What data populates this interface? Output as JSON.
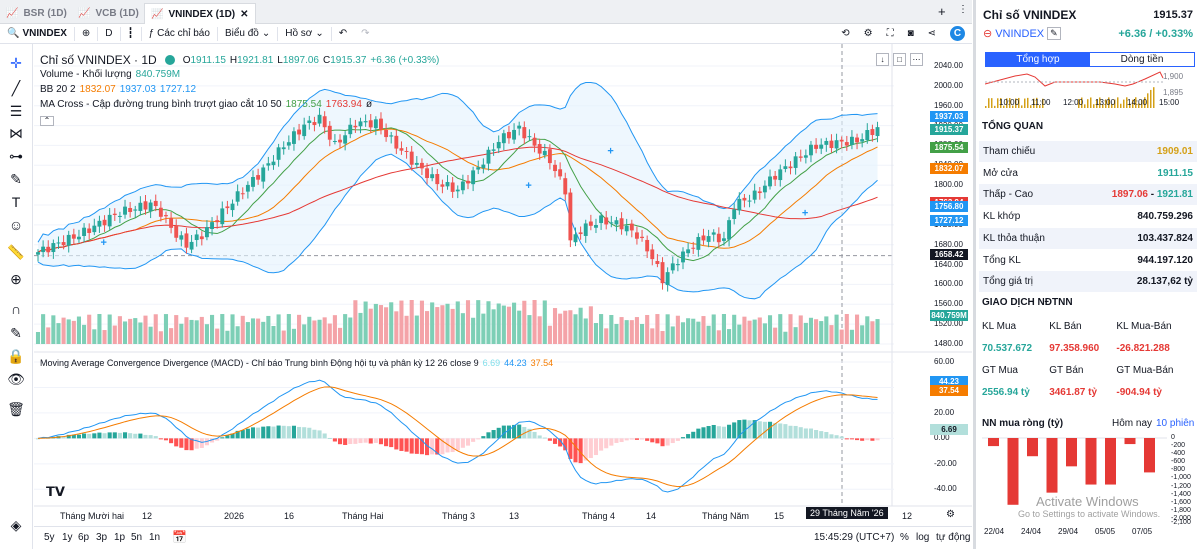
{
  "tabs": [
    {
      "label": "BSR (1D)"
    },
    {
      "label": "VCB (1D)"
    },
    {
      "label": "VNINDEX (1D)"
    }
  ],
  "toolbar": {
    "symbol": "VNINDEX",
    "interval": "D",
    "indicators": "Các chỉ báo",
    "chart_type": "Biểu đồ",
    "profile": "Hồ sơ"
  },
  "legend": {
    "title": "Chỉ số VNINDEX · 1D",
    "o_label": "O",
    "open": "1911.15",
    "h_label": "H",
    "high": "1921.81",
    "l_label": "L",
    "low": "1897.06",
    "c_label": "C",
    "close": "1915.37",
    "change": "+6.36 (+0.33%)",
    "volume_label": "Volume - Khối lượng",
    "volume_value": "840.759M",
    "bb_label": "BB 20 2",
    "bb_values": [
      "1832.07",
      "1937.03",
      "1727.12"
    ],
    "ma_label": "MA Cross - Cập đường trung bình trượt giao cắt 10 50",
    "ma_values": [
      "1875.54",
      "1763.94",
      "ø"
    ],
    "macd_label": "Moving Average Convergence Divergence (MACD) - Chỉ báo Trung bình Động hội tụ và phân kỳ 12 26 close 9",
    "macd_values": [
      "6.69",
      "44.23",
      "37.54"
    ]
  },
  "price_axis": [
    "2040.00",
    "2000.00",
    "1960.00",
    "1920.00",
    "1880.00",
    "1840.00",
    "1800.00",
    "1760.00",
    "1720.00",
    "1680.00",
    "1640.00",
    "1600.00",
    "1560.00",
    "1520.00",
    "1480.00"
  ],
  "price_tags": [
    {
      "text": "1937.03",
      "color": "#2196f3"
    },
    {
      "text": "1915.37",
      "color": "#26a69a"
    },
    {
      "text": "1875.54",
      "color": "#43a047"
    },
    {
      "text": "1832.07",
      "color": "#f57c00"
    },
    {
      "text": "1763.94",
      "color": "#e53935"
    },
    {
      "text": "1756.80",
      "color": "#2196f3"
    },
    {
      "text": "1727.12",
      "color": "#2196f3"
    },
    {
      "text": "1658.42",
      "color": "#131722"
    },
    {
      "text": "840.759M",
      "color": "#26a69a"
    }
  ],
  "macd_axis": [
    "60.00",
    "40.00",
    "20.00",
    "0.00",
    "-20.00",
    "-40.00"
  ],
  "macd_tags": [
    {
      "text": "44.23",
      "color": "#2196f3"
    },
    {
      "text": "37.54",
      "color": "#f57c00"
    },
    {
      "text": "6.69",
      "color": "#26a69a"
    }
  ],
  "time_axis": [
    "Tháng Mười hai",
    "12",
    "2026",
    "16",
    "Tháng Hai",
    "Tháng 3",
    "13",
    "Tháng 4",
    "14",
    "Tháng Năm",
    "15",
    "12"
  ],
  "crosshair_date": "29 Tháng Năm '26",
  "bottom": {
    "ranges": [
      "5y",
      "1y",
      "6p",
      "3p",
      "1p",
      "5n",
      "1n"
    ],
    "time": "15:45:29 (UTC+7)",
    "percent": "%",
    "log": "log",
    "auto": "tự động"
  },
  "panel": {
    "title": "Chỉ số VNINDEX",
    "price": "1915.37",
    "symbol": "VNINDEX",
    "change": "+6.36 / +0.33%",
    "tabs": [
      "Tổng hợp",
      "Dòng tiền"
    ],
    "mini_times": [
      "10:00",
      "11:00",
      "12:00",
      "13:00",
      "14:00",
      "15:00"
    ],
    "mini_axis": [
      "1,900",
      "1,895"
    ],
    "overview_title": "TỔNG QUAN",
    "overview": [
      {
        "label": "Tham chiếu",
        "value": "1909.01",
        "color": "#d4a017"
      },
      {
        "label": "Mở cửa",
        "value": "1911.15",
        "color": "#26a69a"
      },
      {
        "label": "Thấp - Cao",
        "value": "1897.06",
        "value2": "1921.81",
        "color": "#e53935",
        "color2": "#26a69a"
      },
      {
        "label": "KL khớp",
        "value": "840.759.296",
        "color": "#131722"
      },
      {
        "label": "KL thỏa thuận",
        "value": "103.437.824",
        "color": "#131722"
      },
      {
        "label": "Tổng KL",
        "value": "944.197.120",
        "color": "#131722"
      },
      {
        "label": "Tổng giá trị",
        "value": "28.137,62 tỷ",
        "color": "#131722"
      }
    ],
    "foreign_title": "GIAO DỊCH NĐTNN",
    "foreign_headers1": [
      "KL Mua",
      "KL Bán",
      "KL Mua-Bán"
    ],
    "foreign_values1": [
      "70.537.672",
      "97.358.960",
      "-26.821.288"
    ],
    "foreign_headers2": [
      "GT Mua",
      "GT Bán",
      "GT Mua-Bán"
    ],
    "foreign_values2": [
      "2556.94 tỷ",
      "3461.87 tỷ",
      "-904.94 tỷ"
    ],
    "net_title": "NN mua ròng (tỷ)",
    "net_today": "Hôm nay",
    "net_10": "10 phiên",
    "net_values": [
      -200,
      -1650,
      -450,
      -1350,
      -700,
      -1150,
      -1150,
      -150,
      -850
    ],
    "net_axis": [
      "0",
      "-200",
      "-400",
      "-600",
      "-800",
      "-1,000",
      "-1,200",
      "-1,400",
      "-1,600",
      "-1,800",
      "-2,000",
      "-2,100"
    ],
    "net_dates": [
      "22/04",
      "24/04",
      "29/04",
      "05/05",
      "07/05"
    ],
    "watermark": "Activate Windows",
    "watermark2": "Go to Settings to activate Windows."
  }
}
